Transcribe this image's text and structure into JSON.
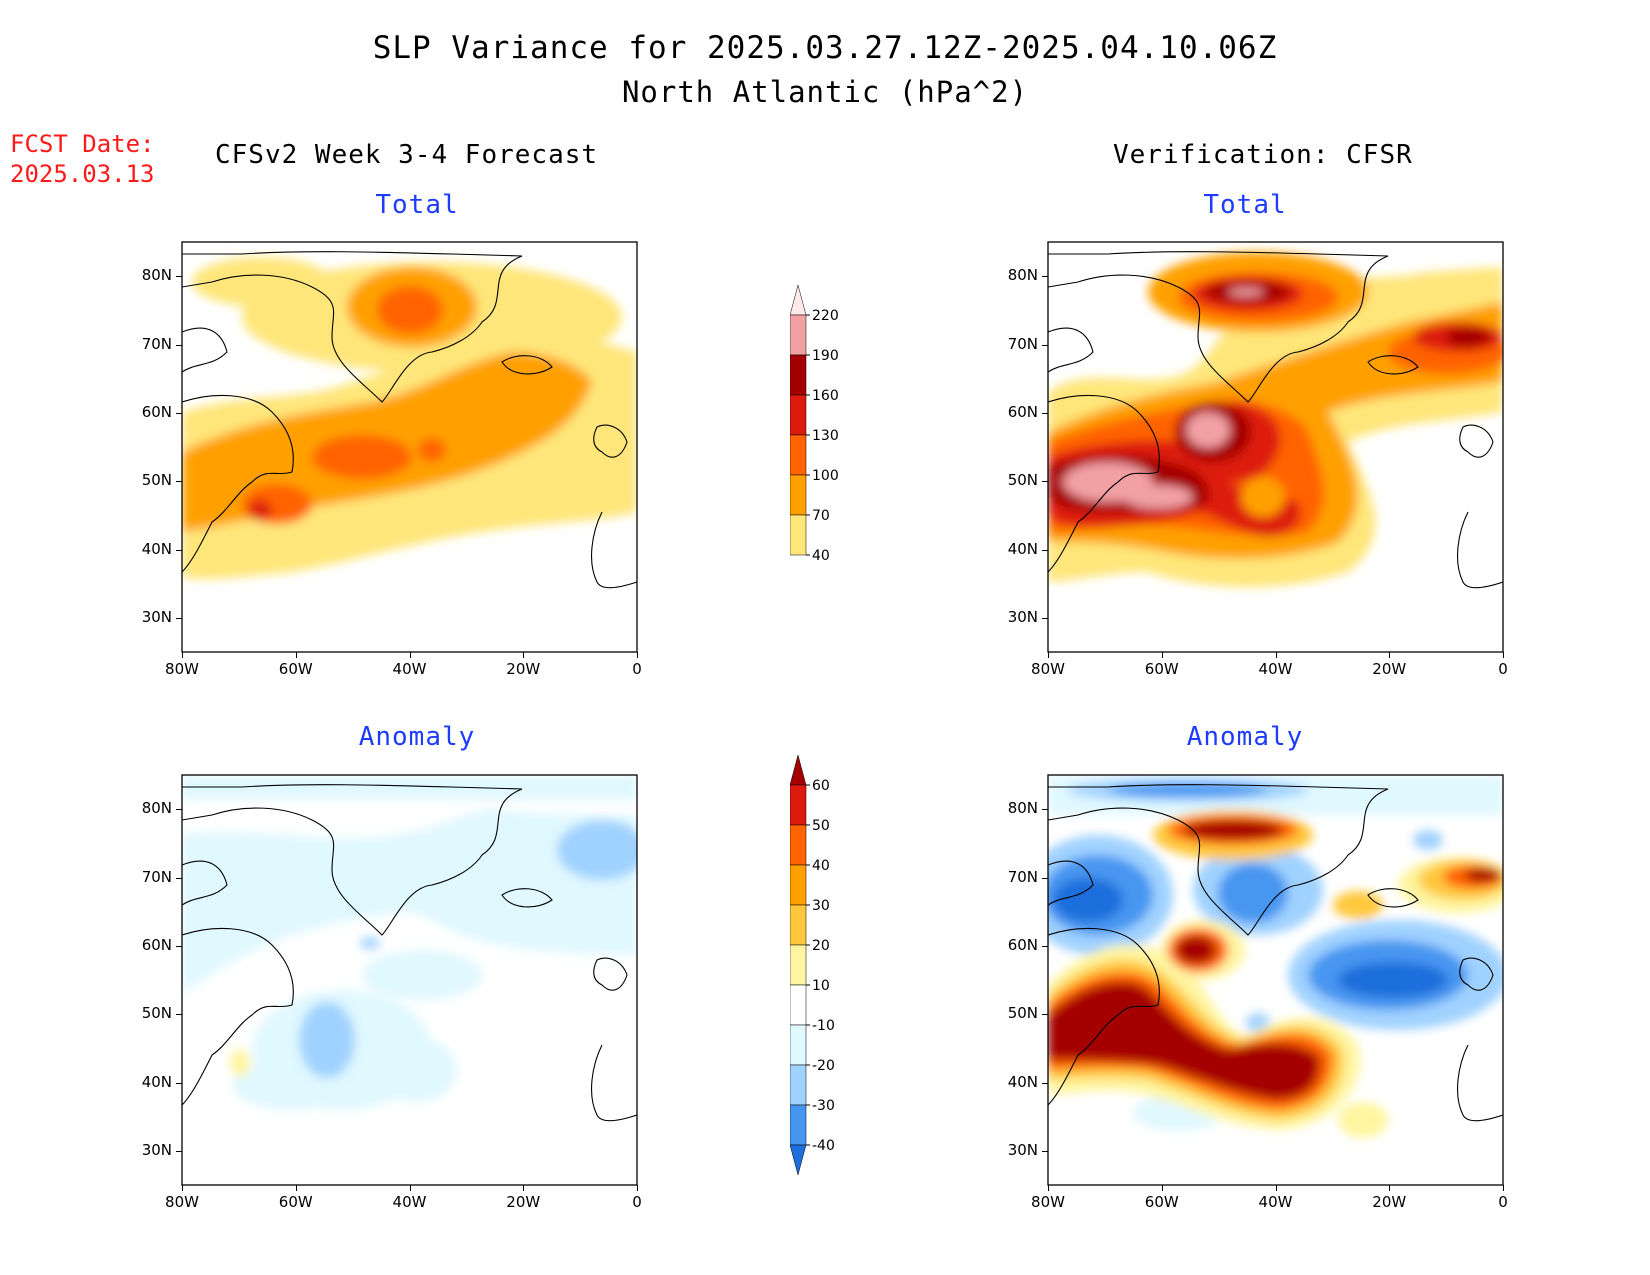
{
  "header": {
    "title_line1": "SLP Variance for 2025.03.27.12Z-2025.04.10.06Z",
    "title_line2": "North Atlantic (hPa^2)"
  },
  "fcst": {
    "label": "FCST Date:",
    "date": "2025.03.13"
  },
  "columns": {
    "left": "CFSv2 Week 3-4 Forecast",
    "right": "Verification: CFSR"
  },
  "panels": {
    "top_left": "Total",
    "top_right": "Total",
    "bottom_left": "Anomaly",
    "bottom_right": "Anomaly"
  },
  "axes": {
    "lat_labels": [
      "80N",
      "70N",
      "60N",
      "50N",
      "40N",
      "30N"
    ],
    "lon_labels": [
      "80W",
      "60W",
      "40W",
      "20W",
      "0"
    ],
    "lat_values": [
      80,
      70,
      60,
      50,
      40,
      30
    ],
    "lon_values": [
      -80,
      -60,
      -40,
      -20,
      0
    ],
    "lat_range": [
      25,
      85
    ],
    "lon_range": [
      -80,
      0
    ]
  },
  "colorbar_total": {
    "labels": [
      "220",
      "190",
      "160",
      "130",
      "100",
      "70",
      "40"
    ],
    "colors": [
      "#ffe9e9",
      "#f2a0a4",
      "#a50000",
      "#dd1a0d",
      "#ff6400",
      "#ffa000",
      "#ffe67a"
    ]
  },
  "colorbar_anomaly": {
    "labels": [
      "60",
      "50",
      "40",
      "30",
      "20",
      "10",
      "-10",
      "-20",
      "-30",
      "-40"
    ],
    "colors": [
      "#a50000",
      "#dd1a0d",
      "#ff6400",
      "#ffa000",
      "#ffc83c",
      "#fff5a0",
      "#ffffff",
      "#e0f8ff",
      "#a0d2ff",
      "#4696f0",
      "#1e6edc"
    ]
  },
  "colors": {
    "title": "#000000",
    "fcst": "#ff1a1a",
    "panel_title": "#1e3cff"
  }
}
